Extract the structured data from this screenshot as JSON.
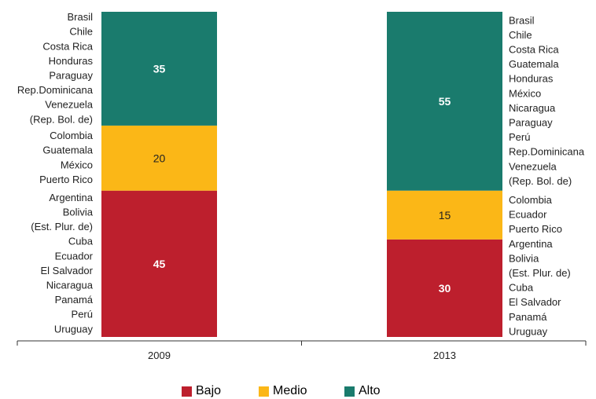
{
  "chart_data": {
    "type": "bar",
    "stacked": true,
    "categories": [
      "2009",
      "2013"
    ],
    "ylim": [
      0,
      100
    ],
    "series": [
      {
        "name": "Bajo",
        "color": "#bd1f2d",
        "label_color": "#ffffff",
        "values": [
          45,
          30
        ],
        "countries": [
          [
            "Argentina",
            "Bolivia",
            "(Est. Plur. de)",
            "Cuba",
            "Ecuador",
            "El Salvador",
            "Nicaragua",
            "Panamá",
            "Perú",
            "Uruguay"
          ],
          [
            "Argentina",
            "Bolivia",
            "(Est. Plur. de)",
            "Cuba",
            "El Salvador",
            "Panamá",
            "Uruguay"
          ]
        ]
      },
      {
        "name": "Medio",
        "color": "#fbb717",
        "label_color": "#222222",
        "values": [
          20,
          15
        ],
        "countries": [
          [
            "Colombia",
            "Guatemala",
            "México",
            "Puerto Rico"
          ],
          [
            "Colombia",
            "Ecuador",
            "Puerto Rico"
          ]
        ]
      },
      {
        "name": "Alto",
        "color": "#1a7b6d",
        "label_color": "#ffffff",
        "values": [
          35,
          55
        ],
        "countries": [
          [
            "Brasil",
            "Chile",
            "Costa Rica",
            "Honduras",
            "Paraguay",
            "Rep.Dominicana",
            "Venezuela",
            "(Rep. Bol. de)"
          ],
          [
            "Brasil",
            "Chile",
            "Costa Rica",
            "Guatemala",
            "Honduras",
            "México",
            "Nicaragua",
            "Paraguay",
            "Perú",
            "Rep.Dominicana",
            "Venezuela",
            "(Rep. Bol. de)"
          ]
        ]
      }
    ],
    "legend_position": "bottom-center",
    "grid": false
  }
}
